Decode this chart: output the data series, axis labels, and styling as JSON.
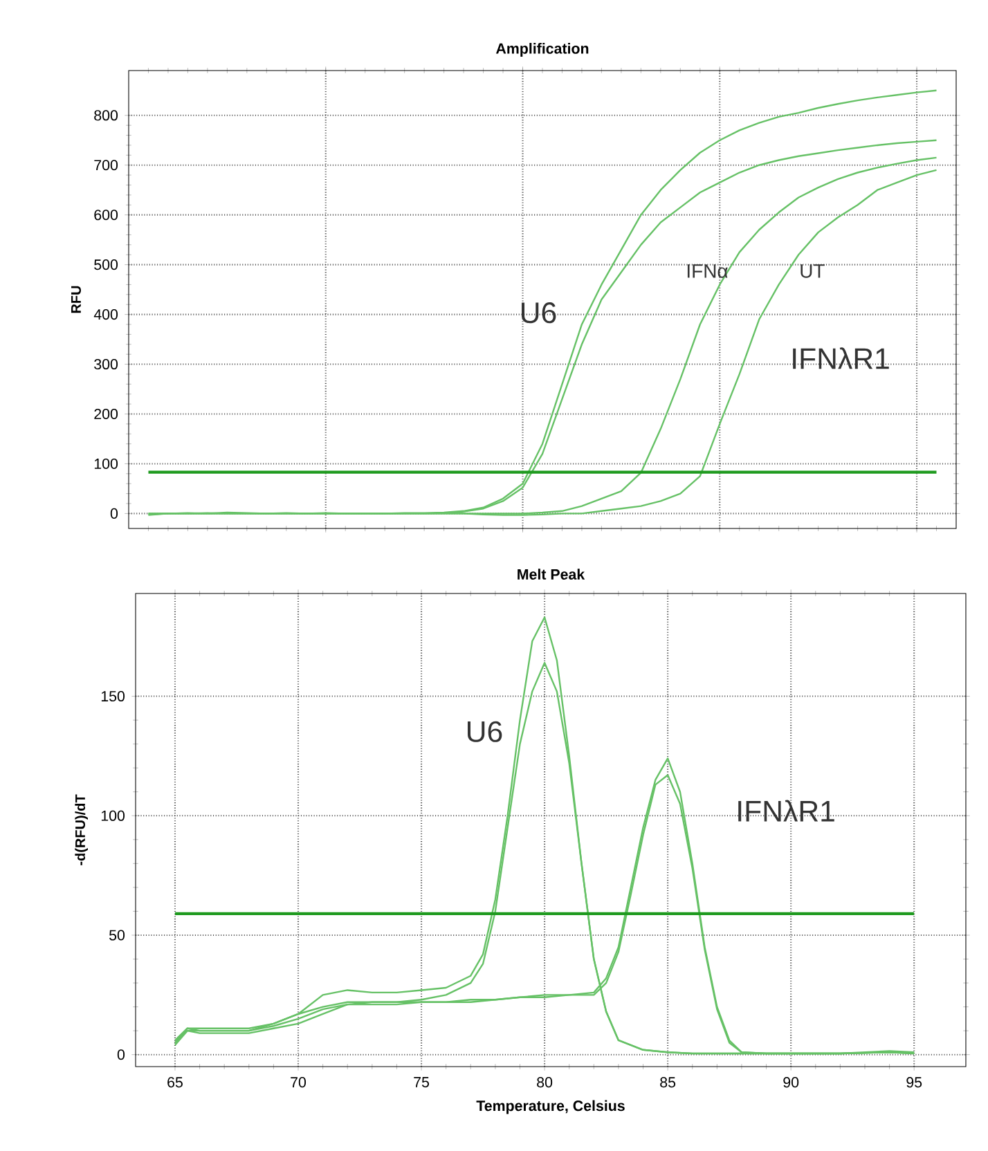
{
  "chart_data": [
    {
      "type": "line",
      "title": "Amplification",
      "ylabel": "RFU",
      "ylim": [
        -30,
        890
      ],
      "categories": [
        null,
        null,
        null,
        null,
        null,
        null,
        null,
        null,
        null,
        null,
        null,
        null,
        null,
        null,
        null,
        null,
        null,
        null,
        null,
        null,
        null,
        null,
        null,
        null,
        null,
        null,
        null,
        null,
        null,
        null,
        null,
        null,
        null,
        null,
        null,
        null,
        null,
        null,
        null,
        null,
        null
      ],
      "yticks": [
        0,
        100,
        200,
        300,
        400,
        500,
        600,
        700,
        800
      ],
      "tick_labels": "y",
      "grid": true,
      "marker": "none",
      "line_style": "solid",
      "series": [
        {
          "color": "#66c166",
          "values": [
            0,
            0,
            1,
            0,
            2,
            1,
            0,
            0,
            0,
            1,
            0,
            0,
            0,
            1,
            1,
            2,
            5,
            12,
            30,
            60,
            140,
            260,
            380,
            460,
            530,
            600,
            650,
            690,
            725,
            750,
            770,
            785,
            797,
            805,
            815,
            823,
            830,
            836,
            841,
            846,
            850
          ]
        },
        {
          "color": "#66c166",
          "values": [
            -2,
            0,
            0,
            1,
            0,
            0,
            0,
            1,
            0,
            0,
            0,
            0,
            0,
            0,
            0,
            1,
            4,
            10,
            25,
            52,
            120,
            230,
            340,
            430,
            485,
            540,
            585,
            615,
            645,
            665,
            685,
            700,
            710,
            718,
            724,
            730,
            735,
            740,
            744,
            747,
            750
          ]
        },
        {
          "color": "#66c166",
          "values": [
            0,
            0,
            0,
            0,
            0,
            0,
            0,
            0,
            0,
            0,
            0,
            0,
            0,
            0,
            0,
            0,
            0,
            0,
            0,
            0,
            2,
            5,
            15,
            30,
            45,
            82,
            170,
            270,
            380,
            460,
            525,
            570,
            605,
            635,
            655,
            672,
            685,
            695,
            703,
            710,
            715
          ]
        },
        {
          "color": "#66c166",
          "values": [
            -3,
            0,
            0,
            0,
            0,
            0,
            0,
            0,
            0,
            0,
            0,
            0,
            0,
            0,
            0,
            0,
            0,
            -2,
            -3,
            -3,
            -2,
            0,
            0,
            5,
            10,
            15,
            25,
            40,
            75,
            180,
            280,
            390,
            460,
            520,
            565,
            595,
            620,
            650,
            665,
            680,
            690
          ]
        }
      ],
      "ref_lines": [
        {
          "axis": "y",
          "value": 83,
          "color": "#1f9a1f"
        }
      ],
      "annotations": [
        "U6",
        "IFNα",
        "UT",
        "IFNλR1"
      ]
    },
    {
      "type": "line",
      "title": "Melt Peak",
      "xlabel": "Temperature, Celsius",
      "ylabel": "-d(RFU)/dT",
      "xlim": [
        63.4,
        97.1
      ],
      "ylim": [
        -5,
        193
      ],
      "xticks": [
        65,
        70,
        75,
        80,
        85,
        90,
        95
      ],
      "yticks": [
        0,
        50,
        100,
        150
      ],
      "grid": true,
      "marker": "none",
      "line_style": "solid",
      "series": [
        {
          "color": "#66c166",
          "x": [
            65,
            65.5,
            66,
            67,
            68,
            69,
            70,
            71,
            72,
            73,
            74,
            75,
            76,
            77,
            77.5,
            78,
            78.5,
            79,
            79.5,
            80,
            80.5,
            81,
            81.5,
            82,
            82.5,
            83,
            84,
            85,
            86,
            88,
            90,
            92,
            94,
            95
          ],
          "values": [
            5,
            11,
            10,
            10,
            10,
            13,
            17,
            25,
            27,
            26,
            26,
            27,
            28,
            33,
            42,
            65,
            100,
            140,
            173,
            183,
            165,
            125,
            80,
            40,
            18,
            6,
            2,
            1,
            0.5,
            0.5,
            0.5,
            0.5,
            1,
            1
          ]
        },
        {
          "color": "#66c166",
          "x": [
            65,
            65.5,
            66,
            67,
            68,
            69,
            70,
            71,
            72,
            73,
            74,
            75,
            76,
            77,
            77.5,
            78,
            78.5,
            79,
            79.5,
            80,
            80.5,
            81,
            81.5,
            82,
            82.5,
            83,
            84,
            85,
            86,
            88,
            90,
            92,
            94,
            95
          ],
          "values": [
            4,
            10,
            9,
            9,
            9,
            11,
            13,
            17,
            21,
            22,
            22,
            23,
            25,
            30,
            38,
            60,
            95,
            130,
            152,
            164,
            152,
            122,
            80,
            40,
            18,
            6,
            2,
            1,
            0.5,
            0.5,
            0.5,
            0.5,
            1,
            0.5
          ]
        },
        {
          "color": "#66c166",
          "x": [
            65,
            65.5,
            66,
            67,
            68,
            69,
            70,
            71,
            72,
            73,
            74,
            75,
            76,
            77,
            78,
            79,
            80,
            81,
            82,
            82.5,
            83,
            83.5,
            84,
            84.5,
            85,
            85.5,
            86,
            86.5,
            87,
            87.5,
            88,
            89,
            90,
            92,
            94,
            95
          ],
          "values": [
            6,
            11,
            11,
            11,
            11,
            13,
            17,
            20,
            22,
            22,
            22,
            22,
            22,
            23,
            23,
            24,
            25,
            25,
            26,
            32,
            45,
            70,
            95,
            115,
            124,
            110,
            80,
            45,
            20,
            6,
            1,
            0.5,
            0.5,
            0.5,
            1.5,
            1
          ]
        },
        {
          "color": "#66c166",
          "x": [
            65,
            65.5,
            66,
            67,
            68,
            69,
            70,
            71,
            72,
            73,
            74,
            75,
            76,
            77,
            78,
            79,
            80,
            81,
            82,
            82.5,
            83,
            83.5,
            84,
            84.5,
            85,
            85.5,
            86,
            86.5,
            87,
            87.5,
            88,
            89,
            90,
            92,
            94,
            95
          ],
          "values": [
            5,
            10,
            10,
            10,
            10,
            12,
            15,
            19,
            21,
            21,
            21,
            22,
            22,
            22,
            23,
            24,
            24,
            25,
            25,
            30,
            43,
            67,
            92,
            113,
            117,
            105,
            78,
            44,
            19,
            5,
            1,
            0.5,
            0.5,
            0.5,
            1,
            0.5
          ]
        }
      ],
      "ref_lines": [
        {
          "axis": "y",
          "value": 59,
          "color": "#1f9a1f"
        }
      ],
      "annotations": [
        "U6",
        "IFNλR1"
      ]
    }
  ]
}
